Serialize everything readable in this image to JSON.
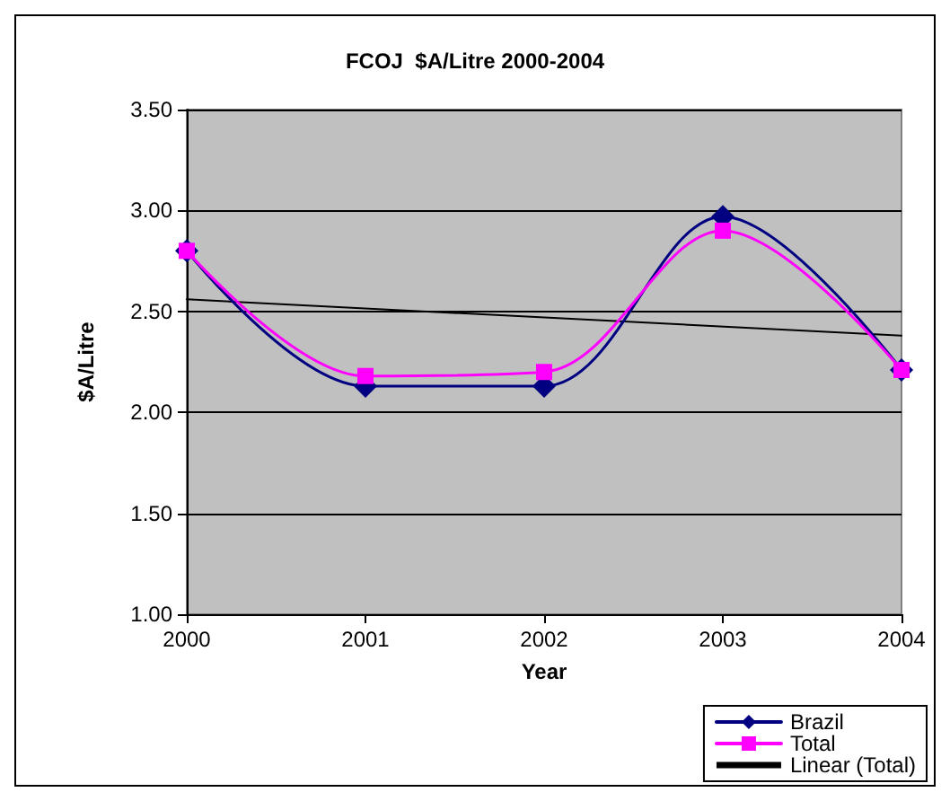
{
  "chart_data": {
    "type": "line",
    "title": "FCOJ  $A/Litre 2000-2004",
    "xlabel": "Year",
    "ylabel": "$A/Litre",
    "x": [
      2000,
      2001,
      2002,
      2003,
      2004
    ],
    "series": [
      {
        "name": "Brazil",
        "color": "#000080",
        "marker": "diamond",
        "values": [
          2.8,
          2.13,
          2.13,
          2.97,
          2.21
        ]
      },
      {
        "name": "Total",
        "color": "#ff00ff",
        "marker": "square",
        "values": [
          2.8,
          2.18,
          2.2,
          2.9,
          2.21
        ]
      },
      {
        "name": "Linear (Total)",
        "color": "#000000",
        "marker": "none",
        "x": [
          2000,
          2004
        ],
        "values": [
          2.56,
          2.38
        ]
      }
    ],
    "xlim": [
      2000,
      2004
    ],
    "xticks": [
      2000,
      2001,
      2002,
      2003,
      2004
    ],
    "ylim": [
      1.0,
      3.5
    ],
    "yticks": [
      {
        "value": 1.0,
        "label": "1.00"
      },
      {
        "value": 1.5,
        "label": "1.50"
      },
      {
        "value": 2.0,
        "label": "2.00"
      },
      {
        "value": 2.5,
        "label": "2.50"
      },
      {
        "value": 3.0,
        "label": "3.00"
      },
      {
        "value": 3.5,
        "label": "3.50"
      }
    ],
    "grid": "y",
    "legend": "bottom right"
  }
}
